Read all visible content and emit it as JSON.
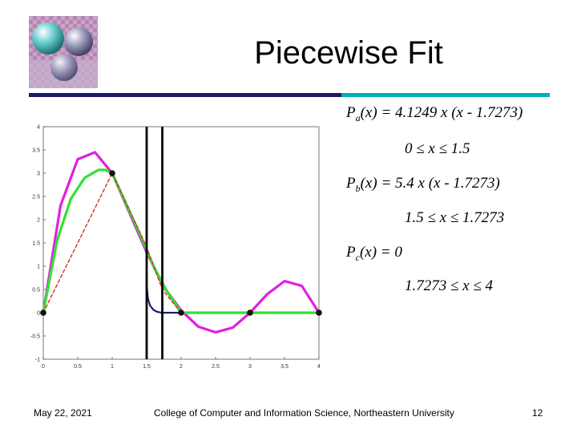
{
  "slide": {
    "title": "Piecewise Fit",
    "page_number": "12"
  },
  "equations": [
    {
      "name": "a",
      "letter": "P",
      "sub": "a",
      "expr": "(x) = 4.1249 x (x - 1.7273)",
      "range": "0 ≤ x ≤ 1.5"
    },
    {
      "name": "b",
      "letter": "P",
      "sub": "b",
      "expr": "(x) = 5.4 x (x - 1.7273)",
      "range": "1.5 ≤ x ≤ 1.7273"
    },
    {
      "name": "c",
      "letter": "P",
      "sub": "c",
      "expr": "(x) = 0",
      "range": "1.7273 ≤ x ≤ 4"
    }
  ],
  "footer": {
    "date": "May 22, 2021",
    "institution": "College of Computer and Information Science, Northeastern University"
  },
  "colors": {
    "magenta": "#e020e0",
    "green": "#33e033",
    "red_dashed": "#d03030",
    "navy": "#1a1a66",
    "teal": "#00b0b0"
  },
  "chart_data": {
    "type": "line",
    "xlim": [
      0,
      4
    ],
    "ylim": [
      -1,
      4
    ],
    "x_ticks": [
      "0",
      "0.5",
      "1",
      "1.5",
      "2",
      "2.5",
      "3",
      "3.5",
      "4"
    ],
    "y_ticks": [
      "-1",
      "-0.5",
      "0",
      "0.5",
      "1",
      "1.5",
      "2",
      "2.5",
      "3",
      "3.5",
      "4"
    ],
    "vertical_lines_x": [
      1.5,
      1.7273
    ],
    "points": {
      "x": [
        0,
        1,
        2,
        3,
        4
      ],
      "y": [
        0,
        3,
        0,
        0,
        0
      ]
    },
    "series": [
      {
        "style": "magenta",
        "x": [
          0,
          0.25,
          0.5,
          0.75,
          1,
          1.25,
          1.5,
          1.75,
          2,
          2.25,
          2.5,
          2.75,
          3,
          3.25,
          3.5,
          3.75,
          4
        ],
        "y": [
          0,
          2.3,
          3.3,
          3.45,
          3.0,
          2.15,
          1.3,
          0.55,
          0.05,
          -0.3,
          -0.42,
          -0.32,
          0,
          0.4,
          0.68,
          0.58,
          0
        ]
      },
      {
        "style": "green",
        "x": [
          0,
          0.2,
          0.4,
          0.6,
          0.8,
          0.9,
          1.0,
          1.2,
          1.4,
          1.6,
          1.8,
          2,
          2.5,
          3,
          3.5,
          4
        ],
        "y": [
          0,
          1.55,
          2.45,
          2.9,
          3.07,
          3.07,
          3.0,
          2.35,
          1.7,
          1.0,
          0.45,
          0,
          0,
          0,
          0,
          0
        ]
      },
      {
        "style": "red_dashed",
        "x": [
          0,
          1,
          1.5,
          1.7273,
          2
        ],
        "y": [
          0,
          3,
          1.41,
          0.5,
          0
        ]
      },
      {
        "style": "navy",
        "x": [
          1.5,
          1.52,
          1.55,
          1.6,
          1.65,
          1.7,
          1.7273,
          2
        ],
        "y": [
          0.6,
          0.3,
          0.15,
          0.06,
          0.02,
          0.005,
          0,
          0
        ]
      }
    ]
  }
}
